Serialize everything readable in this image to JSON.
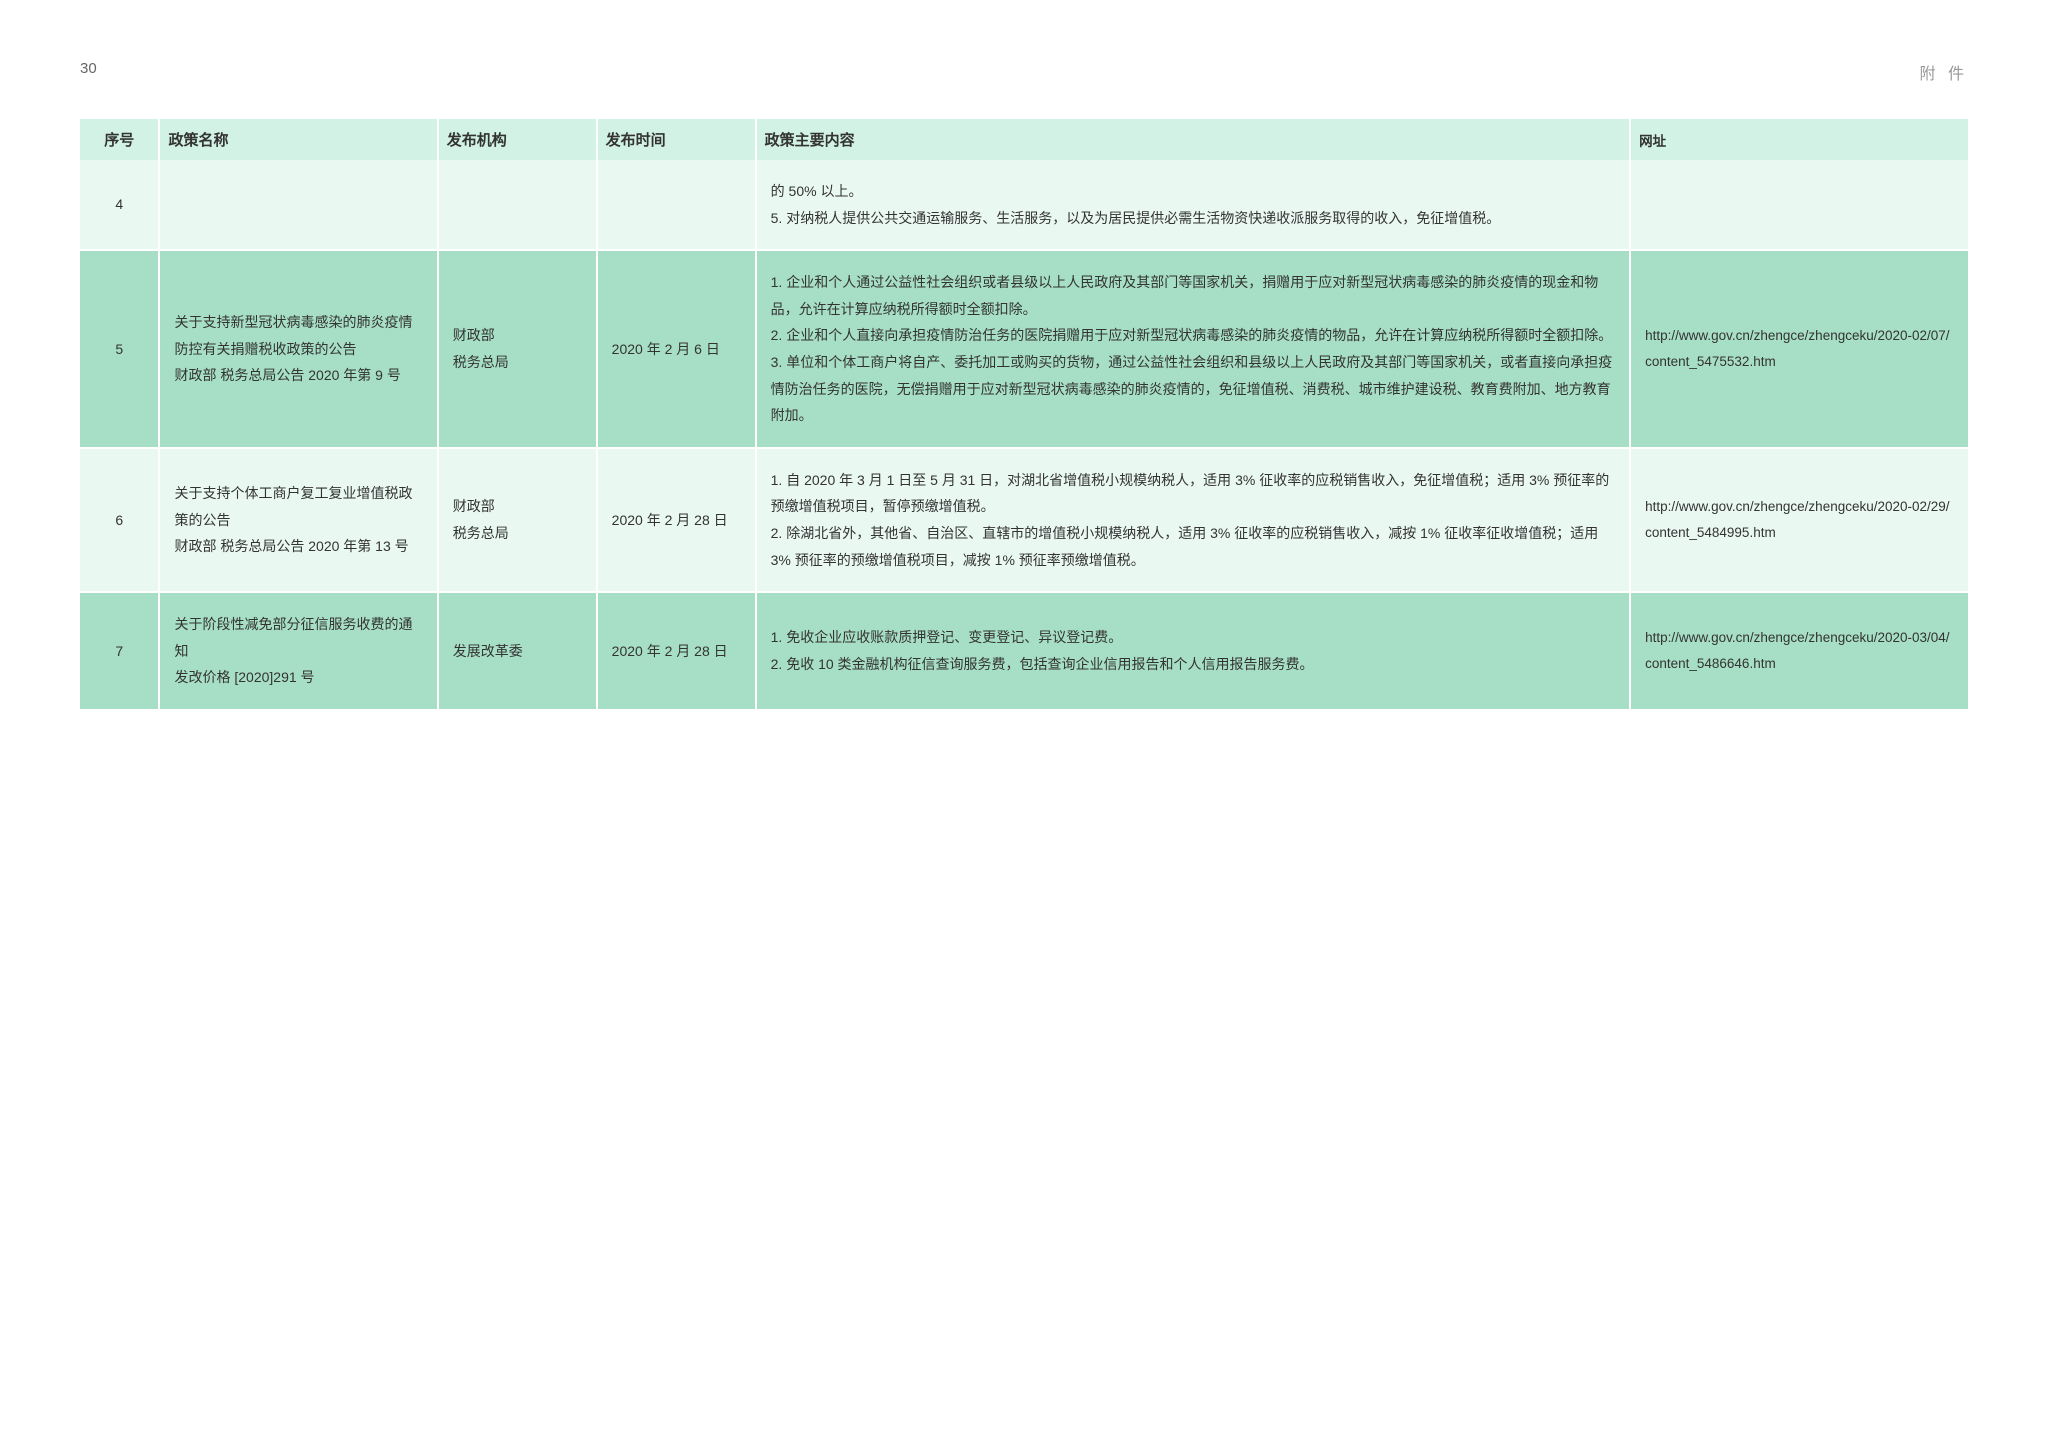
{
  "page": {
    "number": "30",
    "label": "附 件"
  },
  "table": {
    "columns": [
      "序号",
      "政策名称",
      "发布机构",
      "发布时间",
      "政策主要内容",
      "网址"
    ],
    "rows": [
      {
        "rowClass": "row-light",
        "seq": "4",
        "name": "",
        "org": "",
        "date": "",
        "content": "的 50% 以上。\n5. 对纳税人提供公共交通运输服务、生活服务，以及为居民提供必需生活物资快递收派服务取得的收入，免征增值税。",
        "url": ""
      },
      {
        "rowClass": "row-dark",
        "seq": "5",
        "name": "关于支持新型冠状病毒感染的肺炎疫情防控有关捐赠税收政策的公告\n财政部 税务总局公告 2020 年第 9 号",
        "org": "财政部\n税务总局",
        "date": "2020 年 2 月 6 日",
        "content": "1. 企业和个人通过公益性社会组织或者县级以上人民政府及其部门等国家机关，捐赠用于应对新型冠状病毒感染的肺炎疫情的现金和物品，允许在计算应纳税所得额时全额扣除。\n2. 企业和个人直接向承担疫情防治任务的医院捐赠用于应对新型冠状病毒感染的肺炎疫情的物品，允许在计算应纳税所得额时全额扣除。\n3. 单位和个体工商户将自产、委托加工或购买的货物，通过公益性社会组织和县级以上人民政府及其部门等国家机关，或者直接向承担疫情防治任务的医院，无偿捐赠用于应对新型冠状病毒感染的肺炎疫情的，免征增值税、消费税、城市维护建设税、教育费附加、地方教育附加。",
        "url": "http://www.gov.cn/zhengce/zhengceku/2020-02/07/content_5475532.htm"
      },
      {
        "rowClass": "row-light",
        "seq": "6",
        "name": "关于支持个体工商户复工复业增值税政策的公告\n财政部 税务总局公告 2020 年第 13 号",
        "org": "财政部\n税务总局",
        "date": "2020 年 2 月 28 日",
        "content": "1. 自 2020 年 3 月 1 日至 5 月 31 日，对湖北省增值税小规模纳税人，适用 3% 征收率的应税销售收入，免征增值税；适用 3% 预征率的预缴增值税项目，暂停预缴增值税。\n2. 除湖北省外，其他省、自治区、直辖市的增值税小规模纳税人，适用 3% 征收率的应税销售收入，减按 1% 征收率征收增值税；适用 3% 预征率的预缴增值税项目，减按 1% 预征率预缴增值税。",
        "url": "http://www.gov.cn/zhengce/zhengceku/2020-02/29/content_5484995.htm"
      },
      {
        "rowClass": "row-dark",
        "seq": "7",
        "name": "关于阶段性减免部分征信服务收费的通知\n发改价格 [2020]291 号",
        "org": "发展改革委",
        "date": "2020 年 2 月 28 日",
        "content": "1. 免收企业应收账款质押登记、变更登记、异议登记费。\n2. 免收 10 类金融机构征信查询服务费，包括查询企业信用报告和个人信用报告服务费。",
        "url": "http://www.gov.cn/zhengce/zhengceku/2020-03/04/content_5486646.htm"
      }
    ]
  },
  "colors": {
    "header_bg": "#d2f2e5",
    "row_light": "#eaf8f2",
    "row_dark": "#a7dfc6",
    "text": "#333333",
    "page_label": "#999999"
  }
}
